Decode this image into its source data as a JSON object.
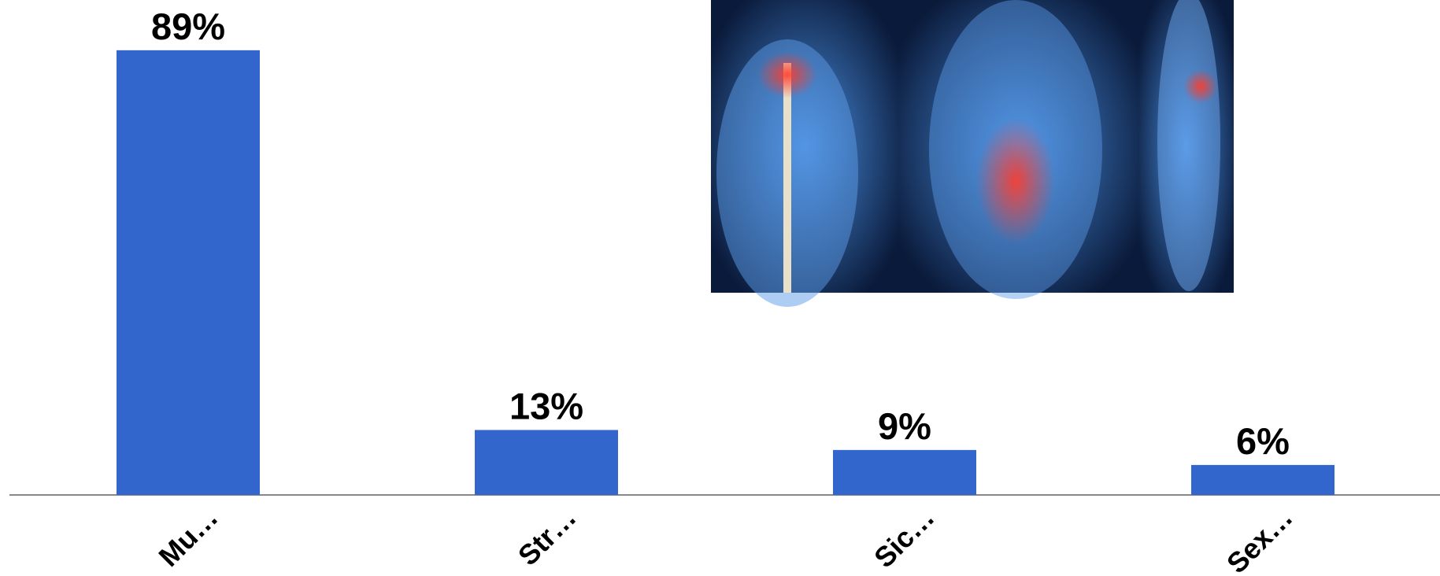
{
  "chart_data": {
    "type": "bar",
    "categories": [
      "Mu…",
      "Str…",
      "Sic…",
      "Sex…"
    ],
    "values": [
      89,
      13,
      9,
      6
    ],
    "value_labels": [
      "89%",
      "13%",
      "9%",
      "6%"
    ],
    "color": "#3366cc"
  }
}
